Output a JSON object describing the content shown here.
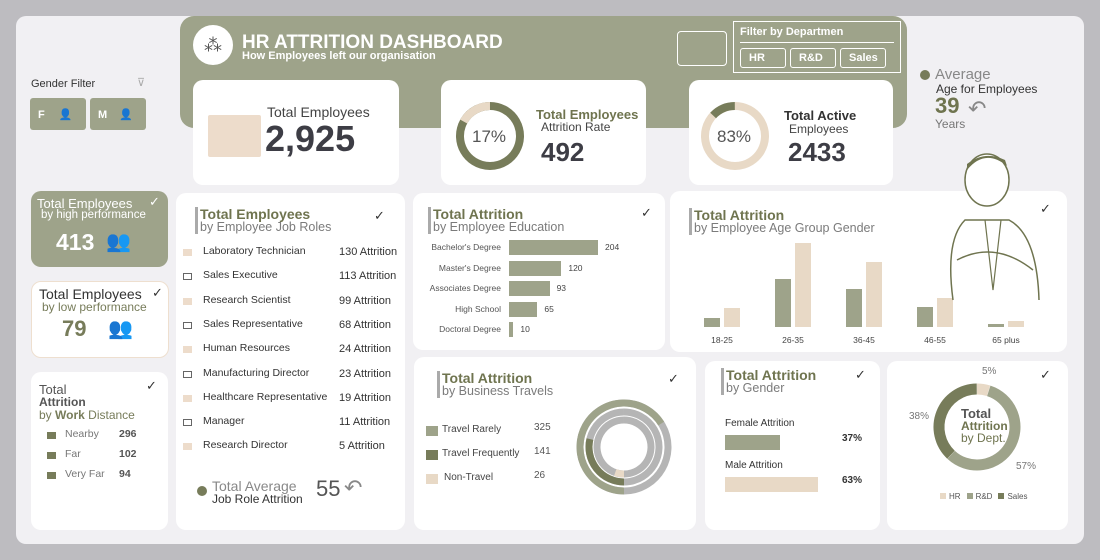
{
  "colors": {
    "olive": "#9ea38a",
    "dark_olive": "#777c5a",
    "beige": "#e8d9c6",
    "bg": "#f1f0f3"
  },
  "header": {
    "title": "HR ATTRITION DASHBOARD",
    "subtitle": "How Employees left our organisation",
    "logo_icon": "network-icon"
  },
  "gender_filter": {
    "label": "Gender Filter",
    "options": [
      "F",
      "M"
    ]
  },
  "dept_filter": {
    "label": "Filter by Departmen",
    "options": [
      "HR",
      "R&D",
      "Sales"
    ]
  },
  "kpis": {
    "total_employees": {
      "label": "Total Employees",
      "value": "2,925"
    },
    "attrition": {
      "label": "Total Employees",
      "sub": "Attrition Rate",
      "value": "492",
      "pct": "17%",
      "fraction": 0.17
    },
    "active": {
      "label": "Total Active",
      "sub": "Employees",
      "value": "2433",
      "pct": "83%",
      "fraction": 0.83
    }
  },
  "avg_age": {
    "label": "Average",
    "sub": "Age for Employees",
    "value": "39",
    "unit": "Years"
  },
  "high_perf": {
    "title": "Total Employees",
    "sub": "by high performance",
    "value": "413"
  },
  "low_perf": {
    "title": "Total Employees",
    "sub": "by low performance",
    "value": "79"
  },
  "work_distance": {
    "title1": "Total",
    "title2": "Attrition",
    "title3a": "by ",
    "title3b": "Work",
    "title3c": " Distance",
    "items": [
      {
        "label": "Nearby",
        "value": "296"
      },
      {
        "label": "Far",
        "value": "102"
      },
      {
        "label": "Very Far",
        "value": "94"
      }
    ]
  },
  "job_roles": {
    "title": "Total Employees",
    "sub": "by Employee Job Roles",
    "items": [
      {
        "label": "Laboratory Technician",
        "value": "130 Attrition"
      },
      {
        "label": "Sales Executive",
        "value": "113 Attrition"
      },
      {
        "label": "Research Scientist",
        "value": "99 Attrition"
      },
      {
        "label": "Sales Representative",
        "value": "68 Attrition"
      },
      {
        "label": "Human Resources",
        "value": "24 Attrition"
      },
      {
        "label": "Manufacturing Director",
        "value": "23 Attrition"
      },
      {
        "label": "Healthcare Representative",
        "value": "19 Attrition"
      },
      {
        "label": "Manager",
        "value": "11 Attrition"
      },
      {
        "label": "Research Director",
        "value": "5 Attrition"
      }
    ],
    "avg_label": "Total Average",
    "avg_sub": "Job Role Attrition",
    "avg_value": "55"
  },
  "chart_data": [
    {
      "type": "bar",
      "title": "Total Attrition",
      "subtitle": "by Employee Education",
      "orientation": "horizontal",
      "categories": [
        "Bachelor's Degree",
        "Master's Degree",
        "Associates Degree",
        "High School",
        "Doctoral Degree"
      ],
      "values": [
        204,
        120,
        93,
        65,
        10
      ]
    },
    {
      "type": "bar",
      "title": "Total Attrition",
      "subtitle": "by Employee Age Group Gender",
      "categories": [
        "18-25",
        "26-35",
        "36-45",
        "46-55",
        "65 plus"
      ],
      "series": [
        {
          "values": [
            14,
            73,
            58,
            31,
            5
          ],
          "color": "#9ea38a"
        },
        {
          "values": [
            29,
            128,
            99,
            44,
            9
          ],
          "color": "#e8d9c6"
        }
      ]
    },
    {
      "type": "pie",
      "title": "Total Attrition",
      "subtitle": "by Business Travels",
      "categories": [
        "Travel Rarely",
        "Travel Frequently",
        "Non-Travel"
      ],
      "values": [
        325,
        141,
        26
      ],
      "labels": [
        "325",
        "141",
        "26"
      ],
      "colors": [
        "#9ea38a",
        "#777c5a",
        "#e8d9c6"
      ]
    },
    {
      "type": "bar",
      "title": "Total Attrition",
      "subtitle": "by Gender",
      "orientation": "horizontal",
      "categories": [
        "Female Attrition",
        "Male Attrition"
      ],
      "values": [
        37,
        63
      ],
      "labels": [
        "37%",
        "63%"
      ],
      "colors": [
        "#9ea38a",
        "#e8d9c6"
      ]
    },
    {
      "type": "pie",
      "title1": "Total",
      "title2": "Attrition",
      "title3": "by Dept.",
      "categories": [
        "HR",
        "R&D",
        "Sales"
      ],
      "values": [
        5,
        57,
        38
      ],
      "labels": [
        "5%",
        "57%",
        "38%"
      ],
      "colors": [
        "#e8d9c6",
        "#9ea38a",
        "#777c5a"
      ],
      "legend": "bottom"
    }
  ]
}
